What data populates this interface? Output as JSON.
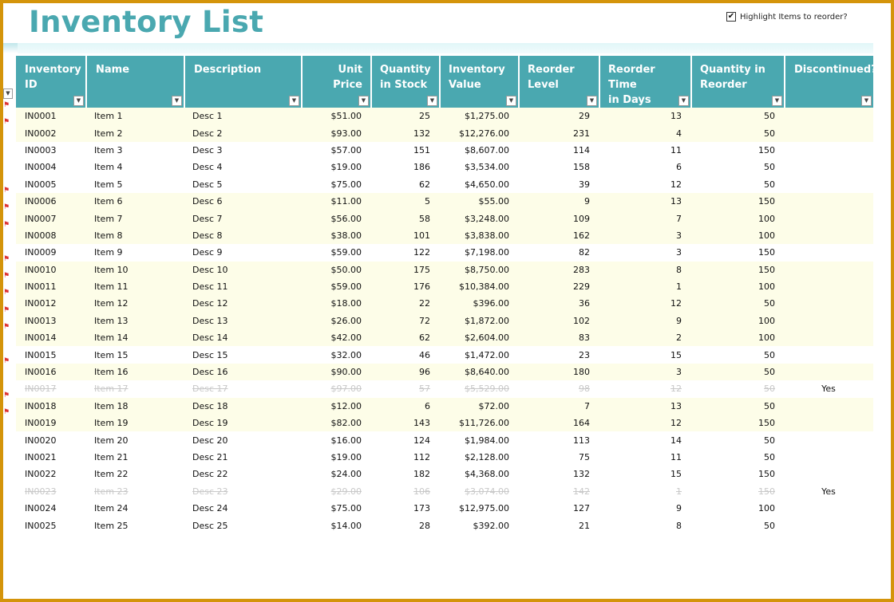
{
  "title": "Inventory List",
  "highlight_checkbox": {
    "label": "Highlight Items to reorder?",
    "checked": true
  },
  "columns": [
    {
      "line1": "Inventory",
      "line2": "ID"
    },
    {
      "line1": "Name",
      "line2": ""
    },
    {
      "line1": "Description",
      "line2": ""
    },
    {
      "line1": "Unit Price",
      "line2": ""
    },
    {
      "line1": "Quantity",
      "line2": "in Stock"
    },
    {
      "line1": "Inventory",
      "line2": "Value"
    },
    {
      "line1": "Reorder",
      "line2": "Level"
    },
    {
      "line1": "Reorder Time",
      "line2": "in Days"
    },
    {
      "line1": "Quantity in",
      "line2": "Reorder"
    },
    {
      "line1": "Discontinued?",
      "line2": ""
    }
  ],
  "rows": [
    {
      "id": "IN0001",
      "name": "Item 1",
      "desc": "Desc 1",
      "price": "$51.00",
      "stock": "25",
      "value": "$1,275.00",
      "level": "29",
      "days": "13",
      "reorder": "50",
      "disc": "",
      "flag": true,
      "hl": true
    },
    {
      "id": "IN0002",
      "name": "Item 2",
      "desc": "Desc 2",
      "price": "$93.00",
      "stock": "132",
      "value": "$12,276.00",
      "level": "231",
      "days": "4",
      "reorder": "50",
      "disc": "",
      "flag": true,
      "hl": true
    },
    {
      "id": "IN0003",
      "name": "Item 3",
      "desc": "Desc 3",
      "price": "$57.00",
      "stock": "151",
      "value": "$8,607.00",
      "level": "114",
      "days": "11",
      "reorder": "150",
      "disc": "",
      "flag": false,
      "hl": false
    },
    {
      "id": "IN0004",
      "name": "Item 4",
      "desc": "Desc 4",
      "price": "$19.00",
      "stock": "186",
      "value": "$3,534.00",
      "level": "158",
      "days": "6",
      "reorder": "50",
      "disc": "",
      "flag": false,
      "hl": false
    },
    {
      "id": "IN0005",
      "name": "Item 5",
      "desc": "Desc 5",
      "price": "$75.00",
      "stock": "62",
      "value": "$4,650.00",
      "level": "39",
      "days": "12",
      "reorder": "50",
      "disc": "",
      "flag": false,
      "hl": false
    },
    {
      "id": "IN0006",
      "name": "Item 6",
      "desc": "Desc 6",
      "price": "$11.00",
      "stock": "5",
      "value": "$55.00",
      "level": "9",
      "days": "13",
      "reorder": "150",
      "disc": "",
      "flag": true,
      "hl": true
    },
    {
      "id": "IN0007",
      "name": "Item 7",
      "desc": "Desc 7",
      "price": "$56.00",
      "stock": "58",
      "value": "$3,248.00",
      "level": "109",
      "days": "7",
      "reorder": "100",
      "disc": "",
      "flag": true,
      "hl": true
    },
    {
      "id": "IN0008",
      "name": "Item 8",
      "desc": "Desc 8",
      "price": "$38.00",
      "stock": "101",
      "value": "$3,838.00",
      "level": "162",
      "days": "3",
      "reorder": "100",
      "disc": "",
      "flag": true,
      "hl": true
    },
    {
      "id": "IN0009",
      "name": "Item 9",
      "desc": "Desc 9",
      "price": "$59.00",
      "stock": "122",
      "value": "$7,198.00",
      "level": "82",
      "days": "3",
      "reorder": "150",
      "disc": "",
      "flag": false,
      "hl": false
    },
    {
      "id": "IN0010",
      "name": "Item 10",
      "desc": "Desc 10",
      "price": "$50.00",
      "stock": "175",
      "value": "$8,750.00",
      "level": "283",
      "days": "8",
      "reorder": "150",
      "disc": "",
      "flag": true,
      "hl": true
    },
    {
      "id": "IN0011",
      "name": "Item 11",
      "desc": "Desc 11",
      "price": "$59.00",
      "stock": "176",
      "value": "$10,384.00",
      "level": "229",
      "days": "1",
      "reorder": "100",
      "disc": "",
      "flag": true,
      "hl": true
    },
    {
      "id": "IN0012",
      "name": "Item 12",
      "desc": "Desc 12",
      "price": "$18.00",
      "stock": "22",
      "value": "$396.00",
      "level": "36",
      "days": "12",
      "reorder": "50",
      "disc": "",
      "flag": true,
      "hl": true
    },
    {
      "id": "IN0013",
      "name": "Item 13",
      "desc": "Desc 13",
      "price": "$26.00",
      "stock": "72",
      "value": "$1,872.00",
      "level": "102",
      "days": "9",
      "reorder": "100",
      "disc": "",
      "flag": true,
      "hl": true
    },
    {
      "id": "IN0014",
      "name": "Item 14",
      "desc": "Desc 14",
      "price": "$42.00",
      "stock": "62",
      "value": "$2,604.00",
      "level": "83",
      "days": "2",
      "reorder": "100",
      "disc": "",
      "flag": true,
      "hl": true
    },
    {
      "id": "IN0015",
      "name": "Item 15",
      "desc": "Desc 15",
      "price": "$32.00",
      "stock": "46",
      "value": "$1,472.00",
      "level": "23",
      "days": "15",
      "reorder": "50",
      "disc": "",
      "flag": false,
      "hl": false
    },
    {
      "id": "IN0016",
      "name": "Item 16",
      "desc": "Desc 16",
      "price": "$90.00",
      "stock": "96",
      "value": "$8,640.00",
      "level": "180",
      "days": "3",
      "reorder": "50",
      "disc": "",
      "flag": true,
      "hl": true
    },
    {
      "id": "IN0017",
      "name": "Item 17",
      "desc": "Desc 17",
      "price": "$97.00",
      "stock": "57",
      "value": "$5,529.00",
      "level": "98",
      "days": "12",
      "reorder": "50",
      "disc": "Yes",
      "flag": false,
      "hl": false,
      "discontinued": true
    },
    {
      "id": "IN0018",
      "name": "Item 18",
      "desc": "Desc 18",
      "price": "$12.00",
      "stock": "6",
      "value": "$72.00",
      "level": "7",
      "days": "13",
      "reorder": "50",
      "disc": "",
      "flag": true,
      "hl": true
    },
    {
      "id": "IN0019",
      "name": "Item 19",
      "desc": "Desc 19",
      "price": "$82.00",
      "stock": "143",
      "value": "$11,726.00",
      "level": "164",
      "days": "12",
      "reorder": "150",
      "disc": "",
      "flag": true,
      "hl": true
    },
    {
      "id": "IN0020",
      "name": "Item 20",
      "desc": "Desc 20",
      "price": "$16.00",
      "stock": "124",
      "value": "$1,984.00",
      "level": "113",
      "days": "14",
      "reorder": "50",
      "disc": "",
      "flag": false,
      "hl": false
    },
    {
      "id": "IN0021",
      "name": "Item 21",
      "desc": "Desc 21",
      "price": "$19.00",
      "stock": "112",
      "value": "$2,128.00",
      "level": "75",
      "days": "11",
      "reorder": "50",
      "disc": "",
      "flag": false,
      "hl": false
    },
    {
      "id": "IN0022",
      "name": "Item 22",
      "desc": "Desc 22",
      "price": "$24.00",
      "stock": "182",
      "value": "$4,368.00",
      "level": "132",
      "days": "15",
      "reorder": "150",
      "disc": "",
      "flag": false,
      "hl": false
    },
    {
      "id": "IN0023",
      "name": "Item 23",
      "desc": "Desc 23",
      "price": "$29.00",
      "stock": "106",
      "value": "$3,074.00",
      "level": "142",
      "days": "1",
      "reorder": "150",
      "disc": "Yes",
      "flag": false,
      "hl": false,
      "discontinued": true
    },
    {
      "id": "IN0024",
      "name": "Item 24",
      "desc": "Desc 24",
      "price": "$75.00",
      "stock": "173",
      "value": "$12,975.00",
      "level": "127",
      "days": "9",
      "reorder": "100",
      "disc": "",
      "flag": false,
      "hl": false
    },
    {
      "id": "IN0025",
      "name": "Item 25",
      "desc": "Desc 25",
      "price": "$14.00",
      "stock": "28",
      "value": "$392.00",
      "level": "21",
      "days": "8",
      "reorder": "50",
      "disc": "",
      "flag": false,
      "hl": false
    }
  ],
  "colors": {
    "header_bg": "#4aa8b0",
    "title": "#4aa8b0",
    "row_highlight": "#fdfde8",
    "frame": "#d4940a"
  },
  "icons": {
    "filter_dropdown": "filter-dropdown-icon",
    "reorder_flag": "flag-icon",
    "checkbox": "checkmark-icon"
  }
}
